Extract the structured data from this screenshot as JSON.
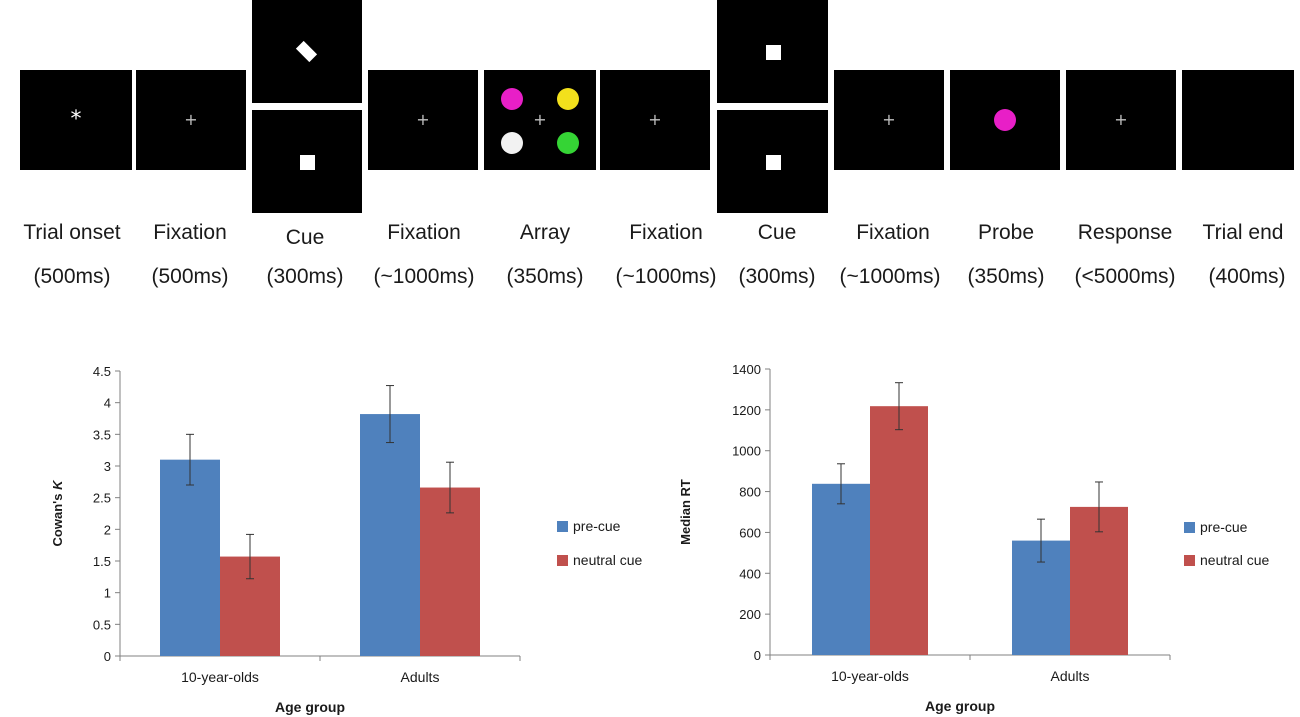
{
  "timeline": {
    "steps": [
      {
        "name": "Trial onset",
        "duration": "(500ms)"
      },
      {
        "name": "Fixation",
        "duration": "(500ms)"
      },
      {
        "name": "Cue",
        "duration": "(300ms)"
      },
      {
        "name": "Fixation",
        "duration": "(~1000ms)"
      },
      {
        "name": "Array",
        "duration": "(350ms)"
      },
      {
        "name": "Fixation",
        "duration": "(~1000ms)"
      },
      {
        "name": "Cue",
        "duration": "(300ms)"
      },
      {
        "name": "Fixation",
        "duration": "(~1000ms)"
      },
      {
        "name": "Probe",
        "duration": "(350ms)"
      },
      {
        "name": "Response",
        "duration": "(<5000ms)"
      },
      {
        "name": "Trial end",
        "duration": "(400ms)"
      }
    ],
    "fixation_symbol": "+",
    "onset_symbol": "*",
    "colors": {
      "panel": "#000000",
      "magenta": "#e81fc7",
      "yellow": "#f2e01c",
      "white": "#f2f2f2",
      "green": "#35d435"
    }
  },
  "chart_data": [
    {
      "type": "bar",
      "title": "",
      "xlabel": "Age group",
      "ylabel_prefix": "Cowan's ",
      "ylabel_italic": "K",
      "ylim": [
        0,
        4.5
      ],
      "yticks": [
        0,
        0.5,
        1,
        1.5,
        2,
        2.5,
        3,
        3.5,
        4,
        4.5
      ],
      "ytick_labels": [
        "0",
        "0.5",
        "1",
        "1.5",
        "2",
        "2.5",
        "3",
        "3.5",
        "4",
        "4.5"
      ],
      "categories": [
        "10-year-olds",
        "Adults"
      ],
      "series": [
        {
          "name": "pre-cue",
          "color": "#4f81bd",
          "values": [
            3.1,
            3.82
          ],
          "errors": [
            0.4,
            0.45
          ]
        },
        {
          "name": "neutral cue",
          "color": "#c0504d",
          "values": [
            1.57,
            2.66
          ],
          "errors": [
            0.35,
            0.4
          ]
        }
      ],
      "legend": "right"
    },
    {
      "type": "bar",
      "title": "",
      "xlabel": "Age group",
      "ylabel_prefix": "Median RT",
      "ylabel_italic": "",
      "ylim": [
        0,
        1400
      ],
      "yticks": [
        0,
        200,
        400,
        600,
        800,
        1000,
        1200,
        1400
      ],
      "ytick_labels": [
        "0",
        "200",
        "400",
        "600",
        "800",
        "1000",
        "1200",
        "1400"
      ],
      "categories": [
        "10-year-olds",
        "Adults"
      ],
      "series": [
        {
          "name": "pre-cue",
          "color": "#4f81bd",
          "values": [
            838,
            560
          ],
          "errors": [
            98,
            105
          ]
        },
        {
          "name": "neutral cue",
          "color": "#c0504d",
          "values": [
            1218,
            725
          ],
          "errors": [
            115,
            122
          ]
        }
      ],
      "legend": "right"
    }
  ]
}
